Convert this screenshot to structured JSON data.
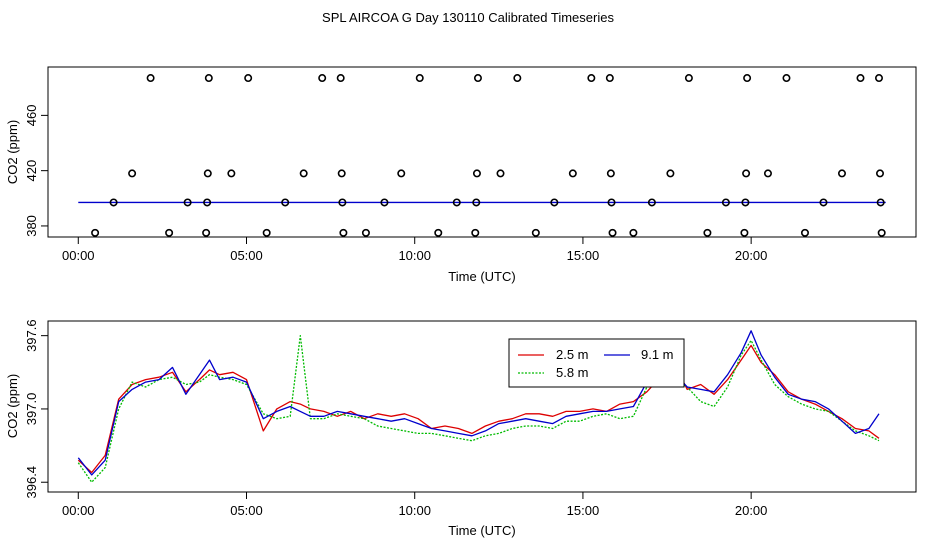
{
  "figure_title": "SPL AIRCOA G  Day 130110  Calibrated Timeseries",
  "colors": {
    "series_2_5": "#dd0000",
    "series_5_8": "#00bb00",
    "series_9_1": "#0000cc",
    "axes": "#000000"
  },
  "chart_data": [
    {
      "type": "scatter",
      "title": "",
      "xlabel": "Time (UTC)",
      "ylabel": "CO2 (ppm)",
      "xlim": [
        -0.9,
        24.9
      ],
      "ylim": [
        372,
        495
      ],
      "x_ticks": [
        0,
        5,
        10,
        15,
        20
      ],
      "x_tick_labels": [
        "00:00",
        "05:00",
        "10:00",
        "15:00",
        "20:00"
      ],
      "y_ticks": [
        380,
        420,
        460
      ],
      "y_tick_labels": [
        "380",
        "420",
        "460"
      ],
      "points_x": [
        0.5,
        1.05,
        1.6,
        2.15,
        2.7,
        3.25,
        3.8,
        3.83,
        3.85,
        3.88,
        4.55,
        5.05,
        5.6,
        6.15,
        6.7,
        7.25,
        7.8,
        7.83,
        7.85,
        7.88,
        8.55,
        9.1,
        9.6,
        10.15,
        10.7,
        11.25,
        11.8,
        11.83,
        11.85,
        11.88,
        12.55,
        13.05,
        13.6,
        14.15,
        14.7,
        15.25,
        15.8,
        15.83,
        15.85,
        15.88,
        16.5,
        17.05,
        17.6,
        18.15,
        18.7,
        19.25,
        19.8,
        19.83,
        19.85,
        19.88,
        20.5,
        21.05,
        21.6,
        22.15,
        22.7,
        23.25,
        23.8,
        23.83,
        23.85,
        23.88
      ],
      "points_y": [
        375,
        397,
        418,
        487,
        375,
        397,
        375,
        397,
        418,
        487,
        418,
        487,
        375,
        397,
        418,
        487,
        487,
        418,
        397,
        375,
        375,
        397,
        418,
        487,
        375,
        397,
        375,
        397,
        418,
        487,
        418,
        487,
        375,
        397,
        418,
        487,
        487,
        418,
        397,
        375,
        375,
        397,
        418,
        487,
        375,
        397,
        375,
        397,
        418,
        487,
        418,
        487,
        375,
        397,
        418,
        487,
        487,
        418,
        397,
        375
      ],
      "baseline_value": 397
    },
    {
      "type": "line",
      "title": "",
      "xlabel": "Time (UTC)",
      "ylabel": "CO2 (ppm)",
      "xlim": [
        -0.9,
        24.9
      ],
      "ylim": [
        396.32,
        397.72
      ],
      "x_ticks": [
        0,
        5,
        10,
        15,
        20
      ],
      "x_tick_labels": [
        "00:00",
        "05:00",
        "10:00",
        "15:00",
        "20:00"
      ],
      "y_ticks": [
        396.4,
        397.0,
        397.6
      ],
      "y_tick_labels": [
        "396.4",
        "397.0",
        "397.6"
      ],
      "legend": {
        "position": "top-center",
        "entries": [
          "2.5 m",
          "5.8 m",
          "9.1 m"
        ]
      },
      "x": [
        0,
        0.4,
        0.8,
        1.2,
        1.6,
        2.0,
        2.4,
        2.8,
        3.2,
        3.6,
        3.9,
        4.2,
        4.6,
        5.0,
        5.5,
        5.9,
        6.3,
        6.6,
        6.9,
        7.3,
        7.7,
        8.1,
        8.5,
        8.9,
        9.3,
        9.7,
        10.1,
        10.5,
        10.9,
        11.3,
        11.7,
        12.1,
        12.5,
        12.9,
        13.3,
        13.7,
        14.1,
        14.5,
        14.9,
        15.3,
        15.7,
        16.1,
        16.5,
        16.9,
        17.3,
        17.7,
        18.1,
        18.5,
        18.9,
        19.3,
        19.7,
        20.0,
        20.3,
        20.7,
        21.1,
        21.5,
        21.9,
        22.3,
        22.7,
        23.1,
        23.5,
        23.8
      ],
      "series": [
        {
          "name": "2.5 m",
          "values": [
            396.58,
            396.48,
            396.62,
            397.08,
            397.2,
            397.24,
            397.26,
            397.3,
            397.14,
            397.24,
            397.32,
            397.28,
            397.3,
            397.24,
            396.82,
            397.0,
            397.06,
            397.04,
            397.0,
            396.98,
            396.94,
            396.98,
            396.92,
            396.96,
            396.94,
            396.96,
            396.92,
            396.84,
            396.86,
            396.84,
            396.8,
            396.86,
            396.9,
            396.92,
            396.96,
            396.96,
            396.94,
            396.98,
            396.98,
            397.0,
            396.98,
            397.04,
            397.06,
            397.14,
            397.26,
            397.38,
            397.16,
            397.2,
            397.12,
            397.24,
            397.4,
            397.52,
            397.38,
            397.28,
            397.14,
            397.08,
            397.04,
            396.98,
            396.92,
            396.84,
            396.82,
            396.76
          ]
        },
        {
          "name": "5.8 m",
          "values": [
            396.56,
            396.4,
            396.52,
            397.0,
            397.22,
            397.18,
            397.24,
            397.26,
            397.2,
            397.22,
            397.28,
            397.26,
            397.24,
            397.2,
            396.96,
            396.92,
            396.94,
            397.6,
            396.92,
            396.92,
            396.96,
            396.94,
            396.92,
            396.86,
            396.84,
            396.82,
            396.8,
            396.8,
            396.78,
            396.76,
            396.74,
            396.78,
            396.8,
            396.84,
            396.86,
            396.86,
            396.84,
            396.9,
            396.9,
            396.94,
            396.96,
            396.92,
            396.94,
            397.18,
            397.3,
            397.24,
            397.18,
            397.06,
            397.02,
            397.18,
            397.44,
            397.56,
            397.4,
            397.2,
            397.1,
            397.04,
            397.0,
            396.98,
            396.9,
            396.82,
            396.78,
            396.74
          ]
        },
        {
          "name": "9.1 m",
          "values": [
            396.6,
            396.46,
            396.58,
            397.06,
            397.16,
            397.22,
            397.24,
            397.34,
            397.12,
            397.28,
            397.4,
            397.24,
            397.26,
            397.22,
            396.92,
            396.98,
            397.02,
            396.98,
            396.94,
            396.94,
            396.98,
            396.96,
            396.94,
            396.92,
            396.9,
            396.92,
            396.88,
            396.84,
            396.82,
            396.8,
            396.78,
            396.82,
            396.88,
            396.9,
            396.92,
            396.9,
            396.88,
            396.94,
            396.96,
            396.98,
            396.98,
            397.0,
            397.02,
            397.22,
            397.3,
            397.3,
            397.18,
            397.16,
            397.14,
            397.28,
            397.46,
            397.64,
            397.44,
            397.26,
            397.12,
            397.08,
            397.06,
            397.0,
            396.9,
            396.8,
            396.84,
            396.96
          ]
        }
      ]
    }
  ]
}
